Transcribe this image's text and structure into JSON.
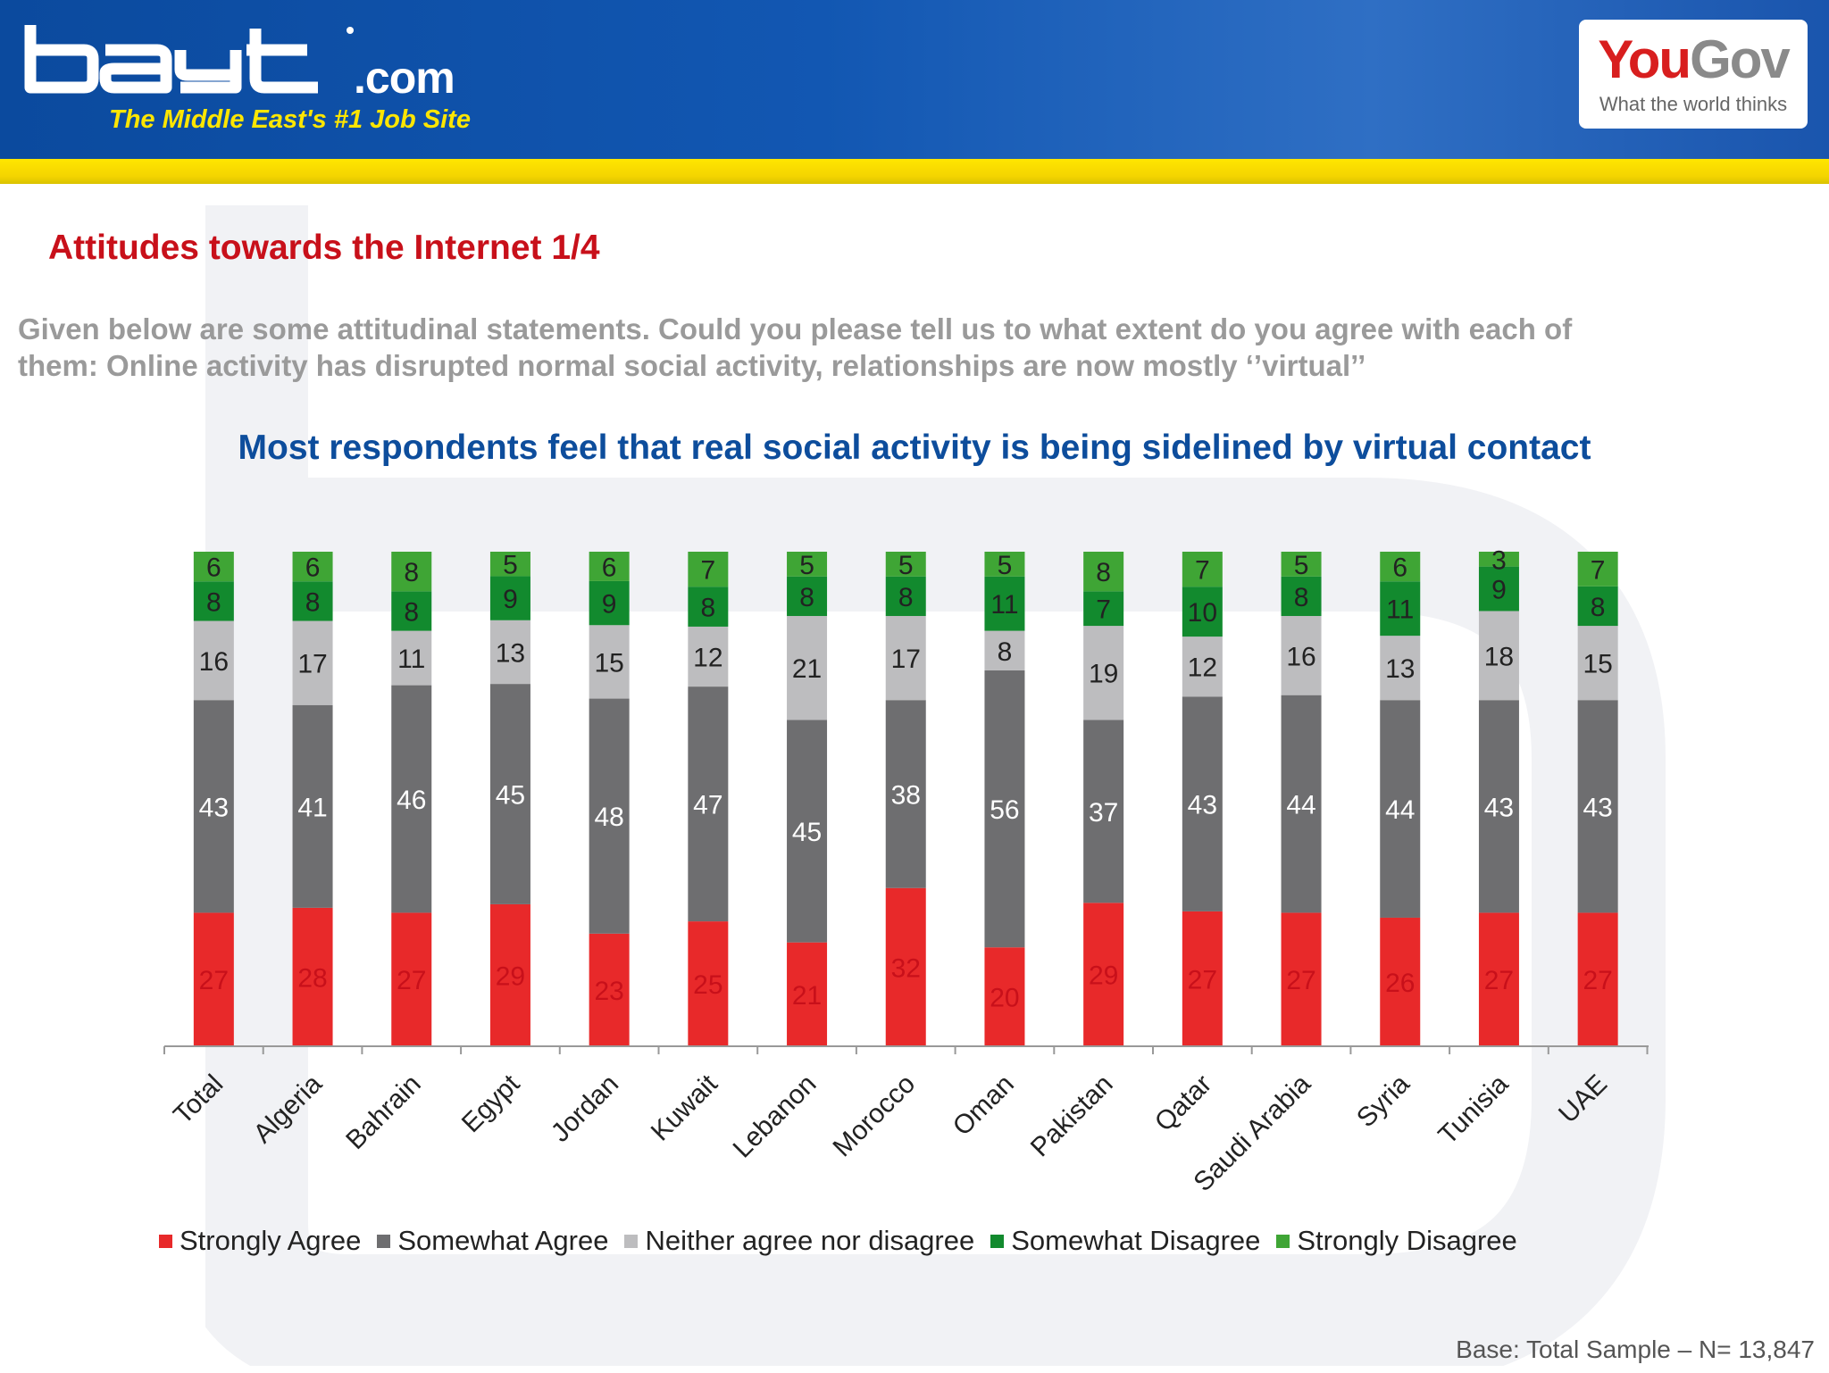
{
  "header": {
    "logo_text": "bayt",
    "logo_domain": ".com",
    "tagline": "The Middle East's #1 Job Site",
    "partner_name_you": "You",
    "partner_name_gov": "Gov",
    "partner_tagline": "What the world thinks"
  },
  "page": {
    "title": "Attitudes towards the Internet 1/4",
    "question": "Given below are some attitudinal statements. Could you please tell us to what extent do you agree with each of them: Online activity has disrupted normal social activity, relationships are now mostly ‘’virtual’’",
    "headline": "Most respondents feel that real social activity is being sidelined by virtual contact",
    "base_note": "Base: Total Sample – N= 13,847"
  },
  "chart_data": {
    "type": "bar",
    "stacked": true,
    "categories": [
      "Total",
      "Algeria",
      "Bahrain",
      "Egypt",
      "Jordan",
      "Kuwait",
      "Lebanon",
      "Morocco",
      "Oman",
      "Pakistan",
      "Qatar",
      "Saudi Arabia",
      "Syria",
      "Tunisia",
      "UAE"
    ],
    "series": [
      {
        "name": "Strongly Agree",
        "color": "#e8292a",
        "label_color": "#c8101a",
        "values": [
          27,
          28,
          27,
          29,
          23,
          25,
          21,
          32,
          20,
          29,
          27,
          27,
          26,
          27,
          27
        ]
      },
      {
        "name": "Somewhat Agree",
        "color": "#6e6e70",
        "label_color": "#ffffff",
        "values": [
          43,
          41,
          46,
          45,
          48,
          47,
          45,
          38,
          56,
          37,
          43,
          44,
          44,
          43,
          43
        ]
      },
      {
        "name": "Neither agree nor disagree",
        "color": "#bdbdbf",
        "label_color": "#222222",
        "values": [
          16,
          17,
          11,
          13,
          15,
          12,
          21,
          17,
          8,
          19,
          12,
          16,
          13,
          18,
          15
        ]
      },
      {
        "name": "Somewhat Disagree",
        "color": "#128a2e",
        "label_color": "#222222",
        "values": [
          8,
          8,
          8,
          9,
          9,
          8,
          8,
          8,
          11,
          7,
          10,
          8,
          11,
          9,
          8
        ]
      },
      {
        "name": "Strongly Disagree",
        "color": "#3fa535",
        "label_color": "#222222",
        "values": [
          6,
          6,
          8,
          5,
          6,
          7,
          5,
          5,
          5,
          8,
          7,
          5,
          6,
          3,
          7
        ]
      }
    ],
    "legend_position": "bottom",
    "x_tick_rotation": "diagonal",
    "y_axis_shown": false,
    "grid": false
  }
}
